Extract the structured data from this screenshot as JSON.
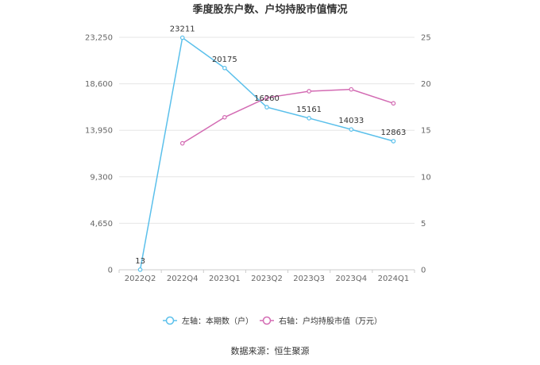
{
  "chart_data": {
    "type": "line",
    "title": "季度股东户数、户均持股市值情况",
    "categories": [
      "2022Q2",
      "2022Q4",
      "2023Q1",
      "2023Q2",
      "2023Q3",
      "2023Q4",
      "2024Q1"
    ],
    "left_axis": {
      "ticks": [
        "0",
        "4,650",
        "9,300",
        "13,950",
        "18,600",
        "23,250"
      ],
      "range": [
        0,
        23250
      ]
    },
    "right_axis": {
      "ticks": [
        "0",
        "5",
        "10",
        "15",
        "20",
        "25"
      ],
      "range": [
        0,
        25
      ]
    },
    "series": [
      {
        "name": "左轴：本期数（户）",
        "axis": "left",
        "color": "#5bc0eb",
        "values": [
          13,
          23211,
          20175,
          16260,
          15161,
          14033,
          12863
        ],
        "labels": [
          "13",
          "23211",
          "20175",
          "16260",
          "15161",
          "14033",
          "12863"
        ]
      },
      {
        "name": "右轴：户均持股市值（万元）",
        "axis": "right",
        "color": "#d36bb3",
        "values": [
          null,
          13.6,
          16.4,
          18.5,
          19.2,
          19.4,
          17.9
        ]
      }
    ],
    "grid": true,
    "legend": "bottom-center"
  },
  "source": "数据来源：恒生聚源"
}
